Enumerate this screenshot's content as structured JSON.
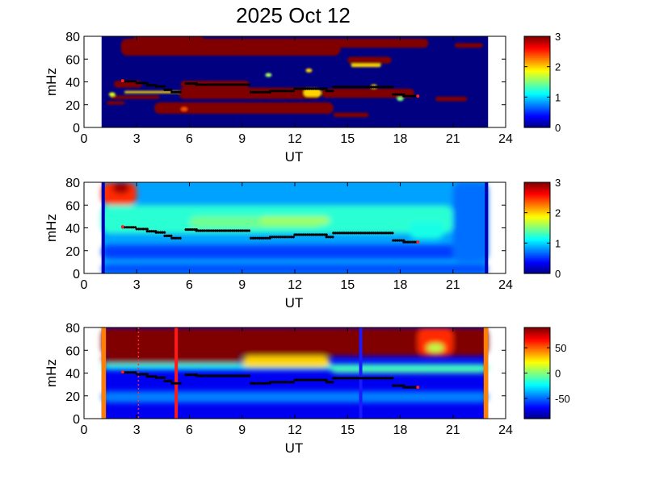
{
  "figure": {
    "title": "2025 Oct 12"
  },
  "chart_data": [
    {
      "type": "heatmap",
      "panel": "top",
      "xlabel": "UT",
      "ylabel": "mHz",
      "xlim": [
        0,
        24
      ],
      "ylim": [
        0,
        80
      ],
      "xticks": [
        "0",
        "3",
        "6",
        "9",
        "12",
        "15",
        "18",
        "21",
        "24"
      ],
      "yticks": [
        "0",
        "20",
        "40",
        "60",
        "80"
      ],
      "colorbar": {
        "range": [
          0,
          3
        ],
        "ticks": [
          "0",
          "1",
          "2",
          "3"
        ],
        "colormap": "jet"
      },
      "data_span": [
        1.0,
        23.0
      ],
      "background_value": 0,
      "blobs": [
        {
          "x0": 2.1,
          "x1": 14.6,
          "y0": 63,
          "y1": 78,
          "v": 3
        },
        {
          "x0": 13.6,
          "x1": 19.6,
          "y0": 70,
          "y1": 78,
          "v": 3
        },
        {
          "x0": 2.8,
          "x1": 6.8,
          "y0": 75,
          "y1": 80,
          "v": 3
        },
        {
          "x0": 15.0,
          "x1": 17.5,
          "y0": 56,
          "y1": 62,
          "v": 3
        },
        {
          "x0": 15.2,
          "x1": 16.9,
          "y0": 53,
          "y1": 56,
          "v": 2
        },
        {
          "x0": 21.1,
          "x1": 22.7,
          "y0": 70,
          "y1": 74,
          "v": 3
        },
        {
          "x0": 1.7,
          "x1": 3.3,
          "y0": 35,
          "y1": 41,
          "v": 3
        },
        {
          "x0": 5.5,
          "x1": 9.4,
          "y0": 35,
          "y1": 41,
          "v": 3
        },
        {
          "x0": 5.4,
          "x1": 13.5,
          "y0": 25,
          "y1": 35,
          "v": 3
        },
        {
          "x0": 13.5,
          "x1": 18.8,
          "y0": 26,
          "y1": 34,
          "v": 3
        },
        {
          "x0": 1.5,
          "x1": 4.3,
          "y0": 25,
          "y1": 28,
          "v": 3
        },
        {
          "x0": 2.3,
          "x1": 5.4,
          "y0": 30,
          "y1": 32,
          "v": 2
        },
        {
          "x0": 4.0,
          "x1": 14.2,
          "y0": 12,
          "y1": 22,
          "v": 3
        },
        {
          "x0": 14.2,
          "x1": 16.2,
          "y0": 9,
          "y1": 13,
          "v": 3
        },
        {
          "x0": 20.0,
          "x1": 21.8,
          "y0": 23,
          "y1": 27,
          "v": 3
        },
        {
          "x0": 1.3,
          "x1": 2.3,
          "y0": 20,
          "y1": 23,
          "v": 3
        },
        {
          "x0": 12.5,
          "x1": 13.5,
          "y0": 27,
          "y1": 34,
          "v": 2
        }
      ],
      "highlights": [
        {
          "x": 10.5,
          "y": 46,
          "v": 1.6
        },
        {
          "x": 12.8,
          "y": 50,
          "v": 2.0
        },
        {
          "x": 18.0,
          "y": 25,
          "v": 1.5
        },
        {
          "x": 16.5,
          "y": 36,
          "v": 2.0
        },
        {
          "x": 5.7,
          "y": 16,
          "v": 2.4
        },
        {
          "x": 1.6,
          "y": 29,
          "v": 1.8
        }
      ]
    },
    {
      "type": "heatmap",
      "panel": "middle",
      "xlabel": "UT",
      "ylabel": "mHz",
      "xlim": [
        0,
        24
      ],
      "ylim": [
        0,
        80
      ],
      "xticks": [
        "0",
        "3",
        "6",
        "9",
        "12",
        "15",
        "18",
        "21",
        "24"
      ],
      "yticks": [
        "0",
        "20",
        "40",
        "60",
        "80"
      ],
      "colorbar": {
        "range": [
          0,
          3
        ],
        "ticks": [
          "0",
          "1",
          "2",
          "3"
        ],
        "colormap": "jet"
      },
      "data_span": [
        1.0,
        23.0
      ],
      "background_value": 0.85,
      "blobs": [
        {
          "x0": 1.0,
          "x1": 3.0,
          "y0": 60,
          "y1": 80,
          "v": 2.5
        },
        {
          "x0": 1.6,
          "x1": 2.6,
          "y0": 70,
          "y1": 80,
          "v": 2.9
        },
        {
          "x0": 1.0,
          "x1": 21.0,
          "y0": 35,
          "y1": 60,
          "v": 1.25
        },
        {
          "x0": 6.0,
          "x1": 13.5,
          "y0": 40,
          "y1": 50,
          "v": 1.45
        },
        {
          "x0": 10.0,
          "x1": 14.0,
          "y0": 43,
          "y1": 50,
          "v": 1.6
        },
        {
          "x0": 1.0,
          "x1": 23.0,
          "y0": 13,
          "y1": 25,
          "v": 0.55
        },
        {
          "x0": 1.0,
          "x1": 23.0,
          "y0": 0,
          "y1": 8,
          "v": 0.6
        },
        {
          "x0": 21.0,
          "x1": 23.0,
          "y0": 10,
          "y1": 80,
          "v": 0.7
        },
        {
          "x0": 18.5,
          "x1": 20.5,
          "y0": 30,
          "y1": 45,
          "v": 1.2
        }
      ],
      "highlights": []
    },
    {
      "type": "heatmap",
      "panel": "bottom",
      "xlabel": "UT",
      "ylabel": "mHz",
      "xlim": [
        0,
        24
      ],
      "ylim": [
        0,
        80
      ],
      "xticks": [
        "0",
        "3",
        "6",
        "9",
        "12",
        "15",
        "18",
        "21",
        "24"
      ],
      "yticks": [
        "0",
        "20",
        "40",
        "60",
        "80"
      ],
      "colorbar": {
        "range": [
          -90,
          90
        ],
        "ticks": [
          "50",
          "0",
          "-50"
        ],
        "tick_values": [
          50,
          0,
          -50
        ],
        "colormap": "jet"
      },
      "data_span": [
        1.0,
        23.0
      ],
      "background_value": -70,
      "blobs": [
        {
          "x0": 1.0,
          "x1": 23.0,
          "y0": 55,
          "y1": 80,
          "v": 90
        },
        {
          "x0": 1.0,
          "x1": 9.0,
          "y0": 48,
          "y1": 55,
          "v": 90
        },
        {
          "x0": 1.0,
          "x1": 23.0,
          "y0": 43,
          "y1": 48,
          "v": -20
        },
        {
          "x0": 9.0,
          "x1": 14.0,
          "y0": 45,
          "y1": 55,
          "v": 30
        },
        {
          "x0": 14.0,
          "x1": 23.0,
          "y0": 40,
          "y1": 47,
          "v": -10
        },
        {
          "x0": 1.0,
          "x1": 23.0,
          "y0": 14,
          "y1": 24,
          "v": -45
        },
        {
          "x0": 19.0,
          "x1": 21.0,
          "y0": 55,
          "y1": 80,
          "v": 60
        },
        {
          "x0": 19.5,
          "x1": 20.5,
          "y0": 58,
          "y1": 66,
          "v": 10
        }
      ],
      "highlights": [],
      "edge_bands": [
        {
          "x0": 1.0,
          "x1": 1.25,
          "v": 45
        },
        {
          "x0": 22.75,
          "x1": 23.0,
          "v": 45
        }
      ],
      "vertical_lines": [
        {
          "x": 5.25,
          "color": "#ff1a1a",
          "style": "solid",
          "width": 4
        },
        {
          "x": 15.75,
          "color": "#1a1aff",
          "style": "solid",
          "width": 4
        },
        {
          "x": 3.1,
          "color": "#ff3030",
          "style": "dotted",
          "width": 1.5
        }
      ]
    }
  ],
  "overlay_track": {
    "type": "scatter",
    "marker_color": "#000000",
    "endpoint_color": "#ff2020",
    "segments": [
      {
        "x0": 2.2,
        "x1": 3.0,
        "y": 40.5
      },
      {
        "x0": 3.0,
        "x1": 3.6,
        "y": 39.0
      },
      {
        "x0": 3.6,
        "x1": 4.1,
        "y": 37.0
      },
      {
        "x0": 4.1,
        "x1": 4.6,
        "y": 36.0
      },
      {
        "x0": 4.6,
        "x1": 5.0,
        "y": 33.0
      },
      {
        "x0": 5.0,
        "x1": 5.5,
        "y": 31.0
      },
      {
        "x0": 5.8,
        "x1": 6.4,
        "y": 38.5
      },
      {
        "x0": 6.4,
        "x1": 9.5,
        "y": 37.5
      },
      {
        "x0": 9.5,
        "x1": 10.6,
        "y": 31.0
      },
      {
        "x0": 10.6,
        "x1": 12.0,
        "y": 32.0
      },
      {
        "x0": 12.0,
        "x1": 13.8,
        "y": 34.0
      },
      {
        "x0": 13.8,
        "x1": 14.2,
        "y": 32.0
      },
      {
        "x0": 14.2,
        "x1": 17.6,
        "y": 35.5
      },
      {
        "x0": 17.6,
        "x1": 18.2,
        "y": 29.0
      },
      {
        "x0": 18.2,
        "x1": 19.0,
        "y": 27.5
      }
    ],
    "endpoints": [
      {
        "x": 2.2,
        "y": 41
      },
      {
        "x": 19.0,
        "y": 27.5
      }
    ]
  }
}
